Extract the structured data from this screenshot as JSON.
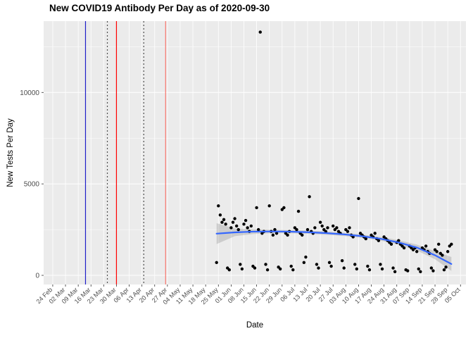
{
  "title": "New COVID19 Antibody Per Day as of 2020-09-30",
  "chart_data": {
    "type": "scatter",
    "title": "New COVID19 Antibody Per Day as of 2020-09-30",
    "xlabel": "Date",
    "ylabel": "New Tests Per Day",
    "x_origin_label": "24 Feb",
    "x_tick_labels": [
      "24 Feb",
      "02 Mar",
      "09 Mar",
      "16 Mar",
      "23 Mar",
      "30 Mar",
      "06 Apr",
      "13 Apr",
      "20 Apr",
      "27 Apr",
      "04 May",
      "11 May",
      "18 May",
      "25 May",
      "01 Jun",
      "08 Jun",
      "15 Jun",
      "22 Jun",
      "29 Jun",
      "06 Jul",
      "13 Jul",
      "20 Jul",
      "27 Jul",
      "03 Aug",
      "10 Aug",
      "17 Aug",
      "24 Aug",
      "31 Aug",
      "07 Sep",
      "14 Sep",
      "21 Sep",
      "28 Sep",
      "05 Oct"
    ],
    "y_ticks": [
      0,
      5000,
      10000
    ],
    "minor_y": [
      2500,
      7500,
      12500
    ],
    "xlim_days": [
      -5,
      227
    ],
    "ylim": [
      -500,
      13900
    ],
    "legend": "none",
    "grid": "on",
    "vlines": [
      {
        "day": 18,
        "color": "#1E1EC8",
        "style": "solid"
      },
      {
        "day": 30,
        "color": "#4D4D4D",
        "style": "dotted"
      },
      {
        "day": 35,
        "color": "#FF0000",
        "style": "solid"
      },
      {
        "day": 50,
        "color": "#4D4D4D",
        "style": "dotted"
      },
      {
        "day": 62,
        "color": "#F8766D",
        "style": "solid"
      }
    ],
    "points": [
      [
        90,
        700
      ],
      [
        91,
        3800
      ],
      [
        92,
        3300
      ],
      [
        93,
        2900
      ],
      [
        94,
        3050
      ],
      [
        95,
        2800
      ],
      [
        96,
        400
      ],
      [
        97,
        300
      ],
      [
        98,
        2600
      ],
      [
        99,
        2900
      ],
      [
        100,
        3100
      ],
      [
        101,
        2700
      ],
      [
        102,
        2500
      ],
      [
        103,
        600
      ],
      [
        104,
        350
      ],
      [
        105,
        2800
      ],
      [
        106,
        3000
      ],
      [
        107,
        2600
      ],
      [
        108,
        2400
      ],
      [
        109,
        2700
      ],
      [
        110,
        500
      ],
      [
        111,
        400
      ],
      [
        112,
        3700
      ],
      [
        113,
        2500
      ],
      [
        114,
        13300
      ],
      [
        115,
        2300
      ],
      [
        116,
        2400
      ],
      [
        117,
        600
      ],
      [
        118,
        300
      ],
      [
        119,
        3800
      ],
      [
        120,
        2400
      ],
      [
        121,
        2200
      ],
      [
        122,
        2500
      ],
      [
        123,
        2300
      ],
      [
        124,
        450
      ],
      [
        125,
        350
      ],
      [
        126,
        3600
      ],
      [
        127,
        3700
      ],
      [
        128,
        2300
      ],
      [
        129,
        2200
      ],
      [
        130,
        2400
      ],
      [
        131,
        500
      ],
      [
        132,
        300
      ],
      [
        133,
        2600
      ],
      [
        134,
        2500
      ],
      [
        135,
        3500
      ],
      [
        136,
        2300
      ],
      [
        137,
        2200
      ],
      [
        138,
        700
      ],
      [
        139,
        1000
      ],
      [
        140,
        2500
      ],
      [
        141,
        4300
      ],
      [
        142,
        2400
      ],
      [
        143,
        2300
      ],
      [
        144,
        2600
      ],
      [
        145,
        600
      ],
      [
        146,
        400
      ],
      [
        147,
        2900
      ],
      [
        148,
        2700
      ],
      [
        149,
        2500
      ],
      [
        150,
        2400
      ],
      [
        151,
        2600
      ],
      [
        152,
        700
      ],
      [
        153,
        500
      ],
      [
        154,
        2700
      ],
      [
        155,
        2500
      ],
      [
        156,
        2600
      ],
      [
        157,
        2400
      ],
      [
        158,
        2300
      ],
      [
        159,
        800
      ],
      [
        160,
        400
      ],
      [
        161,
        2500
      ],
      [
        162,
        2400
      ],
      [
        163,
        2600
      ],
      [
        164,
        2200
      ],
      [
        165,
        2100
      ],
      [
        166,
        600
      ],
      [
        167,
        350
      ],
      [
        168,
        4200
      ],
      [
        169,
        2300
      ],
      [
        170,
        2200
      ],
      [
        171,
        2100
      ],
      [
        172,
        2000
      ],
      [
        173,
        500
      ],
      [
        174,
        300
      ],
      [
        175,
        2200
      ],
      [
        176,
        2100
      ],
      [
        177,
        2300
      ],
      [
        178,
        2000
      ],
      [
        179,
        1900
      ],
      [
        180,
        600
      ],
      [
        181,
        350
      ],
      [
        182,
        2100
      ],
      [
        183,
        2000
      ],
      [
        184,
        1900
      ],
      [
        185,
        1800
      ],
      [
        186,
        1700
      ],
      [
        187,
        400
      ],
      [
        188,
        200
      ],
      [
        189,
        1800
      ],
      [
        190,
        1900
      ],
      [
        191,
        1700
      ],
      [
        192,
        1600
      ],
      [
        193,
        1500
      ],
      [
        194,
        300
      ],
      [
        195,
        250
      ],
      [
        196,
        1600
      ],
      [
        197,
        1500
      ],
      [
        198,
        1400
      ],
      [
        199,
        1500
      ],
      [
        200,
        1300
      ],
      [
        201,
        350
      ],
      [
        202,
        200
      ],
      [
        203,
        1500
      ],
      [
        204,
        1400
      ],
      [
        205,
        1600
      ],
      [
        206,
        1300
      ],
      [
        207,
        1200
      ],
      [
        208,
        400
      ],
      [
        209,
        250
      ],
      [
        210,
        1400
      ],
      [
        211,
        1300
      ],
      [
        212,
        1700
      ],
      [
        213,
        1200
      ],
      [
        214,
        1100
      ],
      [
        215,
        300
      ],
      [
        216,
        450
      ],
      [
        217,
        1300
      ],
      [
        218,
        1600
      ],
      [
        219,
        1700
      ]
    ],
    "smooth": {
      "x": [
        90,
        100,
        110,
        120,
        130,
        140,
        150,
        160,
        170,
        180,
        190,
        200,
        210,
        219
      ],
      "y": [
        2280,
        2350,
        2390,
        2400,
        2390,
        2360,
        2310,
        2240,
        2140,
        2000,
        1800,
        1520,
        1100,
        620
      ],
      "upper": [
        2850,
        2560,
        2520,
        2500,
        2480,
        2450,
        2400,
        2330,
        2230,
        2100,
        1920,
        1680,
        1320,
        1000
      ],
      "lower": [
        1710,
        2140,
        2260,
        2300,
        2300,
        2270,
        2220,
        2150,
        2050,
        1900,
        1680,
        1360,
        880,
        240
      ]
    },
    "colors": {
      "panel": "#EBEBEB",
      "grid": "#FFFFFF",
      "point": "#000000",
      "smooth_line": "#3366FF",
      "ribbon": "#8C8C8C",
      "axis_text": "#4D4D4D",
      "tick_mark": "#333333",
      "title": "#000000"
    }
  }
}
